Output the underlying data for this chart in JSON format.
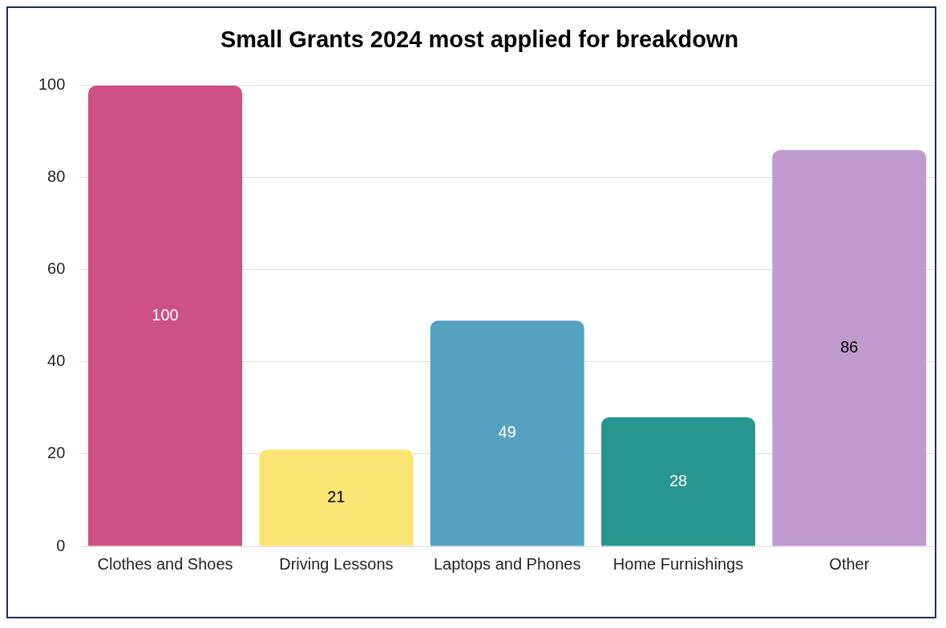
{
  "chart_data": {
    "type": "bar",
    "title": "Small Grants 2024 most applied for breakdown",
    "categories": [
      "Clothes and Shoes",
      "Driving Lessons",
      "Laptops and Phones",
      "Home Furnishings",
      "Other"
    ],
    "values": [
      100,
      21,
      49,
      28,
      86
    ],
    "colors": [
      "#cf5083",
      "#fae573",
      "#56a1c0",
      "#26968f",
      "#c19bcd"
    ],
    "ylim": [
      0,
      100
    ],
    "yticks": [
      0,
      20,
      40,
      60,
      80,
      100
    ],
    "grid": "y",
    "data_labels": true,
    "legend": false
  }
}
